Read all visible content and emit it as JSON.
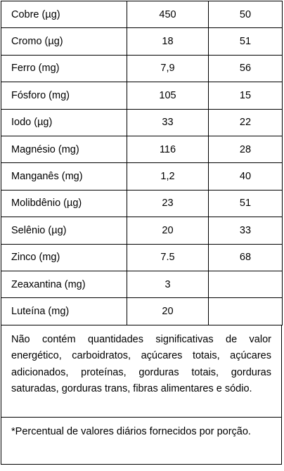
{
  "table": {
    "rows": [
      [
        "Cobre (µg)",
        450,
        50
      ],
      [
        "Cromo (µg)",
        18,
        51
      ],
      [
        "Ferro (mg)",
        "7,9",
        56
      ],
      [
        "Fósforo (mg)",
        105,
        15
      ],
      [
        "Iodo (µg)",
        33,
        22
      ],
      [
        "Magnésio (mg)",
        116,
        28
      ],
      [
        "Manganês (mg)",
        "1,2",
        40
      ],
      [
        "Molibdênio (µg)",
        23,
        51
      ],
      [
        "Selênio (µg)",
        20,
        33
      ],
      [
        "Zinco (mg)",
        7.5,
        68
      ],
      [
        "Zeaxantina (mg)",
        3
      ],
      [
        "Luteína (mg)",
        20
      ]
    ]
  },
  "notes": {
    "composition": "Não contém quantidades significativas de valor energético, carboidratos, açúcares totais, açúcares adicionados, proteínas, gorduras totais, gorduras saturadas, gorduras trans, fibras alimentares e sódio.",
    "footnote": "*Percentual de valores diários fornecidos por porção."
  }
}
